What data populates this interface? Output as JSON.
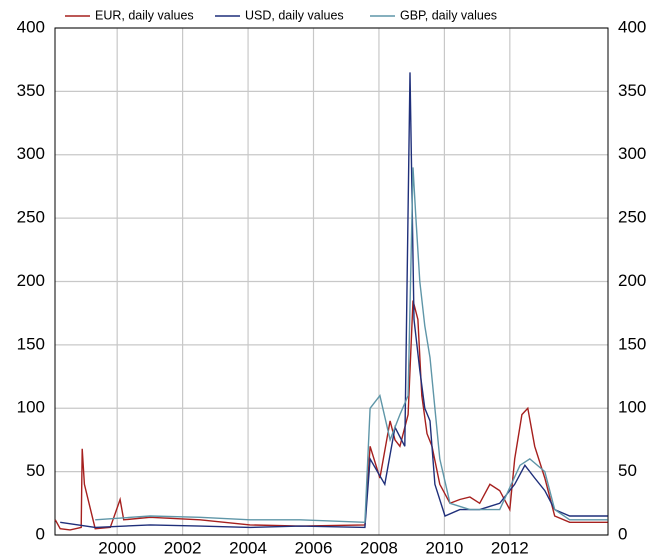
{
  "chart_data": {
    "type": "line",
    "xlim": [
      1998.1,
      2015.0
    ],
    "xticks": [
      2000,
      2002,
      2004,
      2006,
      2008,
      2010,
      2012
    ],
    "ylim": [
      0,
      400
    ],
    "yticks": [
      0,
      50,
      100,
      150,
      200,
      250,
      300,
      350,
      400
    ],
    "y2lim": [
      0,
      400
    ],
    "y2ticks": [
      0,
      50,
      100,
      150,
      200,
      250,
      300,
      350,
      400
    ],
    "grid": true,
    "legend": "top",
    "series": [
      {
        "name": "EUR, daily values",
        "color": "#a6201e",
        "x": [
          1998.11,
          1998.26,
          1998.56,
          1998.9,
          1998.93,
          1999.0,
          1999.33,
          1999.79,
          2000.09,
          2000.2,
          2001.01,
          2002.53,
          2004.06,
          2005.59,
          2007.57,
          2007.73,
          2008.03,
          2008.34,
          2008.49,
          2008.64,
          2008.89,
          2009.04,
          2009.19,
          2009.31,
          2009.47,
          2009.62,
          2009.86,
          2010.17,
          2010.47,
          2010.78,
          2011.08,
          2011.39,
          2011.69,
          2012.0,
          2012.15,
          2012.37,
          2012.55,
          2012.76,
          2013.07,
          2013.37,
          2013.83,
          2014.99
        ],
        "values": [
          12,
          5,
          4,
          6,
          68,
          40,
          5,
          6,
          28,
          12,
          14,
          12,
          8,
          7,
          8,
          70,
          45,
          90,
          75,
          70,
          95,
          185,
          170,
          110,
          80,
          70,
          40,
          25,
          28,
          30,
          25,
          40,
          35,
          20,
          60,
          95,
          100,
          70,
          45,
          15,
          10,
          10
        ]
      },
      {
        "name": "USD, daily values",
        "color": "#1f2f7a",
        "x": [
          1998.26,
          1999.33,
          2001.01,
          2002.53,
          2004.06,
          2005.59,
          2007.57,
          2007.73,
          2008.18,
          2008.49,
          2008.79,
          2008.95,
          2009.07,
          2009.25,
          2009.4,
          2009.56,
          2009.71,
          2010.02,
          2010.47,
          2011.08,
          2011.69,
          2012.15,
          2012.46,
          2012.76,
          2013.07,
          2013.37,
          2013.83,
          2014.99
        ],
        "values": [
          10,
          6,
          8,
          7,
          6,
          7,
          6,
          60,
          40,
          85,
          70,
          365,
          170,
          130,
          100,
          90,
          40,
          15,
          20,
          20,
          25,
          40,
          55,
          45,
          35,
          20,
          15,
          15
        ]
      },
      {
        "name": "GBP, daily values",
        "color": "#5f96a8",
        "x": [
          1999.33,
          2001.01,
          2002.53,
          2004.06,
          2005.59,
          2007.57,
          2007.73,
          2008.03,
          2008.34,
          2008.64,
          2008.89,
          2009.04,
          2009.13,
          2009.25,
          2009.4,
          2009.56,
          2009.86,
          2010.17,
          2010.78,
          2011.69,
          2012.31,
          2012.61,
          2013.07,
          2013.37,
          2013.83,
          2014.99
        ],
        "values": [
          12,
          15,
          14,
          12,
          12,
          10,
          100,
          110,
          75,
          95,
          110,
          290,
          250,
          200,
          165,
          140,
          60,
          25,
          20,
          20,
          55,
          60,
          50,
          20,
          12,
          12
        ]
      }
    ]
  }
}
